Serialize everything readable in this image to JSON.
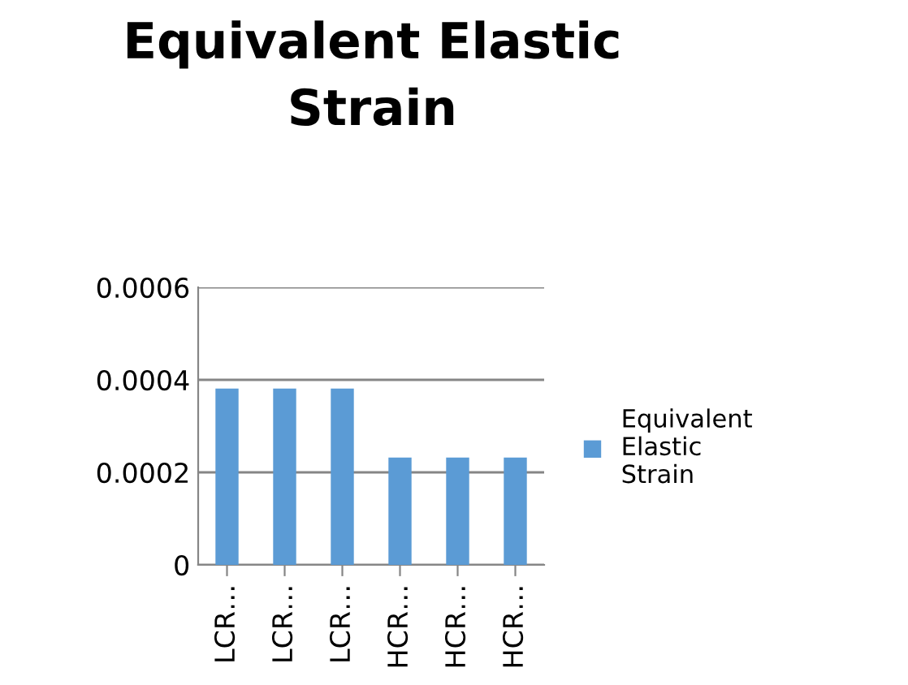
{
  "chart_data": {
    "type": "bar",
    "title": "Equivalent Elastic Strain",
    "categories": [
      "LCR…",
      "LCR…",
      "LCR…",
      "HCR…",
      "HCR…",
      "HCR…"
    ],
    "series": [
      {
        "name": "Equivalent Elastic Strain",
        "color": "#5b9bd5",
        "values": [
          0.000381,
          0.000381,
          0.000381,
          0.000232,
          0.000232,
          0.000232
        ]
      }
    ],
    "ylim": [
      0,
      0.0006
    ],
    "yticks": [
      0,
      0.0002,
      0.0004,
      0.0006
    ],
    "grid": "y",
    "legend": "right"
  }
}
